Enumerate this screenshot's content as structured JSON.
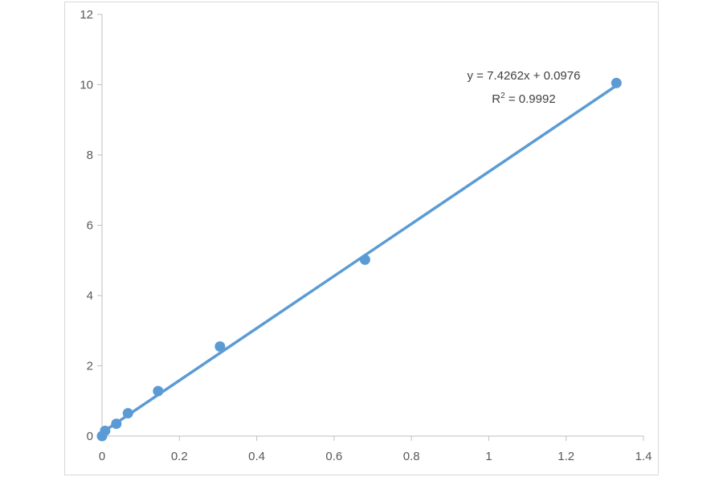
{
  "chart_data": {
    "type": "scatter",
    "title": "",
    "xlabel": "",
    "ylabel": "",
    "xlim": [
      0,
      1.4
    ],
    "ylim": [
      0,
      12
    ],
    "x_ticks": [
      0,
      0.2,
      0.4,
      0.6,
      0.8,
      1,
      1.2,
      1.4
    ],
    "y_ticks": [
      0,
      2,
      4,
      6,
      8,
      10,
      12
    ],
    "x_tick_labels": [
      "0",
      "0.2",
      "0.4",
      "0.6",
      "0.8",
      "1",
      "1.2",
      "1.4"
    ],
    "y_tick_labels": [
      "0",
      "2",
      "4",
      "6",
      "8",
      "10",
      "12"
    ],
    "grid": false,
    "legend": "none",
    "series": [
      {
        "x": [
          0,
          0.008,
          0.037,
          0.067,
          0.145,
          0.305,
          0.68,
          1.33
        ],
        "y": [
          0,
          0.15,
          0.35,
          0.65,
          1.28,
          2.55,
          5.02,
          10.05
        ],
        "color": "#5b9bd5"
      }
    ],
    "trendline": {
      "type": "linear",
      "slope": 7.4262,
      "intercept": 0.0976,
      "x_range": [
        0,
        1.33
      ],
      "color": "#5b9bd5",
      "equation_text": "y = 7.4262x + 0.0976",
      "r2_prefix": "R",
      "r2_superscript": "2",
      "r2_suffix": " = 0.9992"
    },
    "axis_color": "#bfbfbf"
  }
}
